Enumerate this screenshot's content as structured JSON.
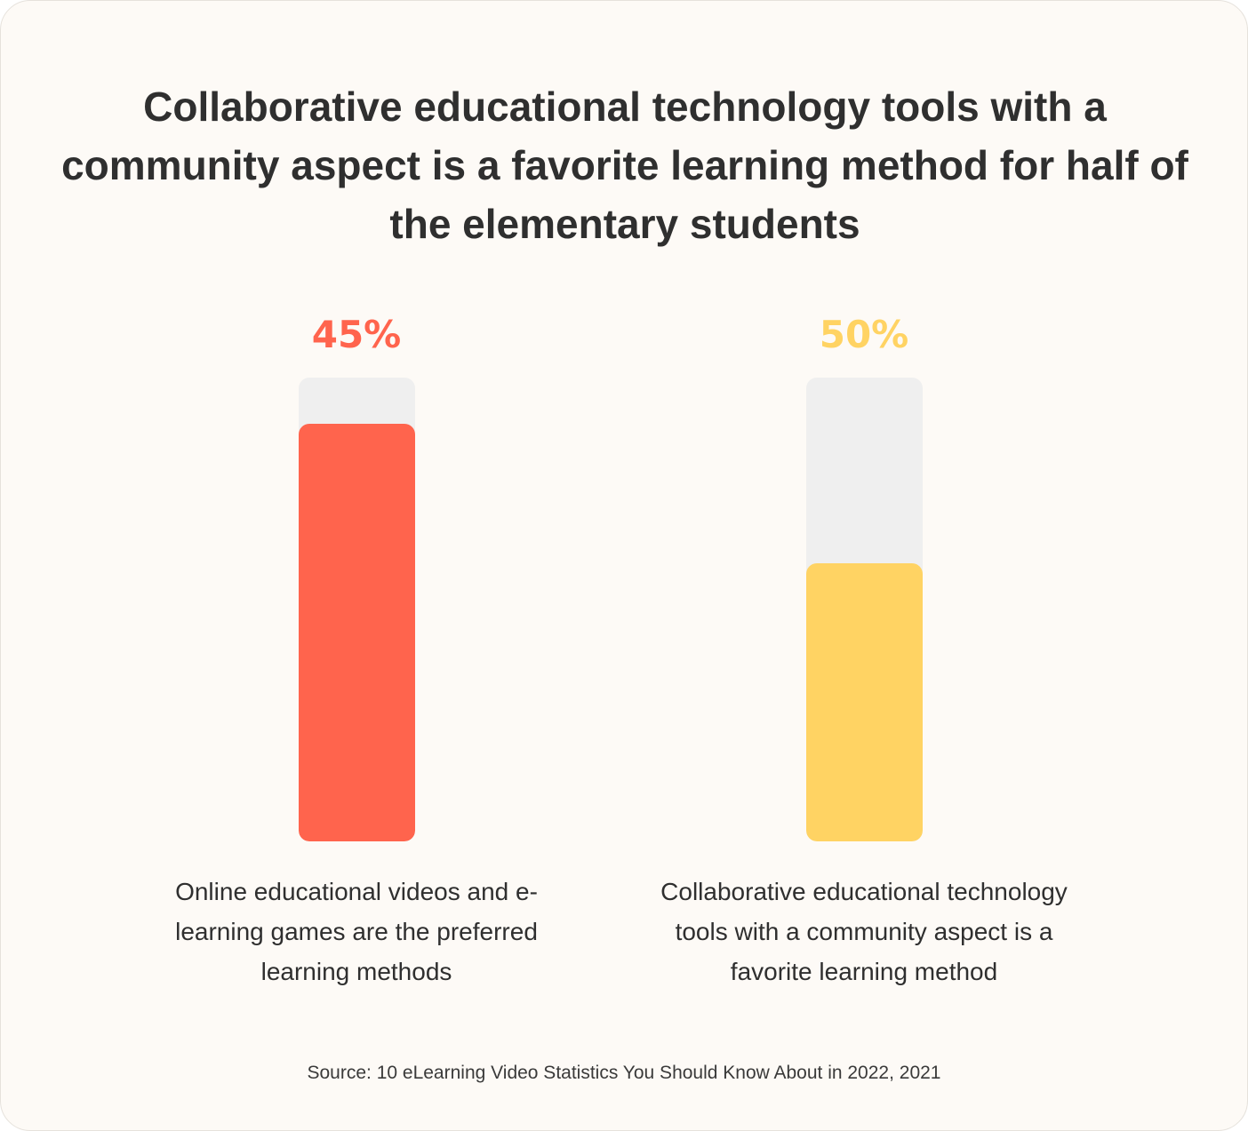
{
  "chart_data": {
    "type": "bar",
    "title": "Collaborative educational technology tools with a community aspect is a favorite learning method for half of the elementary students",
    "categories": [
      "Online educational videos and e-learning games are the preferred learning methods",
      "Collaborative educational technology tools with a community aspect is a favorite learning method"
    ],
    "values": [
      45,
      50
    ],
    "value_labels": [
      "45%",
      "50%"
    ],
    "colors": [
      "#ff644d",
      "#ffd363"
    ],
    "track_color": "#efefef",
    "bar_fill_fraction": [
      0.9,
      0.6
    ],
    "source": "Source: 10 eLearning Video Statistics You Should Know About in 2022, 2021"
  }
}
